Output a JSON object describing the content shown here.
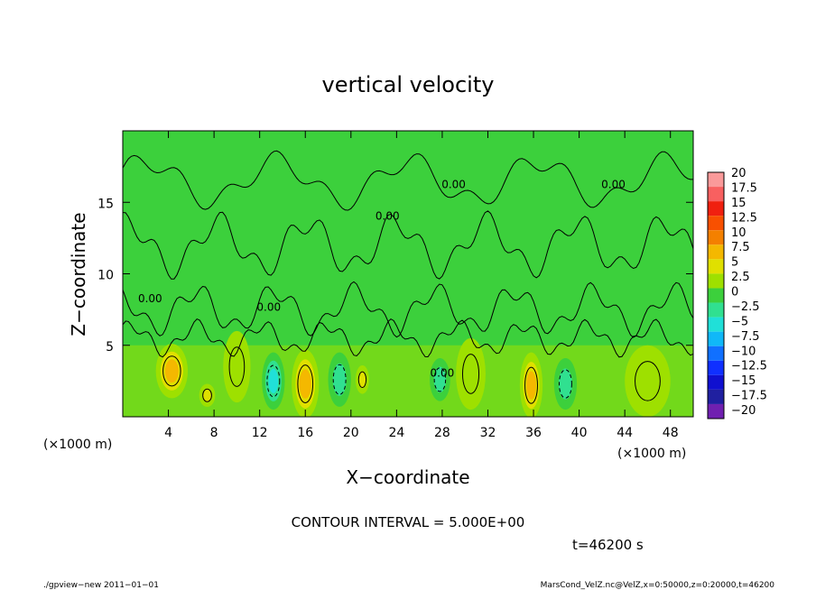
{
  "chart_data": {
    "type": "heatmap",
    "title": "vertical velocity",
    "xlabel": "X−coordinate",
    "ylabel": "Z−coordinate",
    "x_unit_left": "(×1000 m)",
    "x_unit_right": "(×1000 m)",
    "xlim": [
      0,
      50
    ],
    "ylim": [
      0,
      20
    ],
    "x_ticks": [
      {
        "value": 4,
        "label": "4"
      },
      {
        "value": 8,
        "label": "8"
      },
      {
        "value": 12,
        "label": "12"
      },
      {
        "value": 16,
        "label": "16"
      },
      {
        "value": 20,
        "label": "20"
      },
      {
        "value": 24,
        "label": "24"
      },
      {
        "value": 28,
        "label": "28"
      },
      {
        "value": 32,
        "label": "32"
      },
      {
        "value": 36,
        "label": "36"
      },
      {
        "value": 40,
        "label": "40"
      },
      {
        "value": 44,
        "label": "44"
      },
      {
        "value": 48,
        "label": "48"
      }
    ],
    "y_ticks": [
      {
        "value": 5,
        "label": "5"
      },
      {
        "value": 10,
        "label": "10"
      },
      {
        "value": 15,
        "label": "15"
      }
    ],
    "contour_interval_text": "CONTOUR INTERVAL = 5.000E+00",
    "contour_labels": [
      {
        "x": 29,
        "y": 16.0,
        "text": "0.00"
      },
      {
        "x": 43,
        "y": 16.0,
        "text": "0.00"
      },
      {
        "x": 28,
        "y": 2.8,
        "text": "0.00"
      },
      {
        "x": 2.4,
        "y": 8.0,
        "text": "0.00"
      },
      {
        "x": 12.8,
        "y": 7.4,
        "text": "0.00"
      },
      {
        "x": 23.2,
        "y": 13.8,
        "text": "0.00"
      }
    ],
    "features": [
      {
        "x": 4.3,
        "y": 3.2,
        "sx": 1.4,
        "sy": 1.9,
        "value": 7.5
      },
      {
        "x": 7.4,
        "y": 1.5,
        "sx": 0.7,
        "sy": 0.8,
        "value": 5
      },
      {
        "x": 16.0,
        "y": 2.3,
        "sx": 1.2,
        "sy": 2.4,
        "value": 7.5
      },
      {
        "x": 21.0,
        "y": 2.6,
        "sx": 0.6,
        "sy": 1.0,
        "value": 4
      },
      {
        "x": 35.8,
        "y": 2.2,
        "sx": 1.0,
        "sy": 2.3,
        "value": 7.5
      },
      {
        "x": 13.2,
        "y": 2.5,
        "sx": 1.0,
        "sy": 2.0,
        "value": -6
      },
      {
        "x": 19.0,
        "y": 2.6,
        "sx": 1.0,
        "sy": 1.9,
        "value": -5
      },
      {
        "x": 27.8,
        "y": 2.6,
        "sx": 0.9,
        "sy": 1.5,
        "value": -4
      },
      {
        "x": 38.8,
        "y": 2.3,
        "sx": 1.0,
        "sy": 1.8,
        "value": -5
      },
      {
        "x": 10.0,
        "y": 3.5,
        "sx": 1.2,
        "sy": 2.5,
        "value": 2
      },
      {
        "x": 30.5,
        "y": 3.0,
        "sx": 1.3,
        "sy": 2.5,
        "value": 2
      },
      {
        "x": 46.0,
        "y": 2.5,
        "sx": 2.0,
        "sy": 2.5,
        "value": 1.5
      }
    ],
    "colorbar": {
      "labels": [
        "20",
        "17.5",
        "15",
        "12.5",
        "10",
        "7.5",
        "5",
        "2.5",
        "0",
        "−2.5",
        "−5",
        "−7.5",
        "−10",
        "−12.5",
        "−15",
        "−17.5",
        "−20"
      ],
      "colors": [
        "#fa9a9a",
        "#f86060",
        "#f02010",
        "#f85000",
        "#f48000",
        "#f4b800",
        "#e0e000",
        "#9ee000",
        "#3cd03c",
        "#30e090",
        "#20e0d8",
        "#10b8f8",
        "#1070ff",
        "#1030ff",
        "#1010d0",
        "#2020a0",
        "#7020b0"
      ]
    },
    "time_label": "t=46200 s",
    "grid": false
  },
  "footer": {
    "left": "./gpview−new   2011−01−01",
    "right": "MarsCond_VelZ.nc@VelZ,x=0:50000,z=0:20000,t=46200"
  }
}
